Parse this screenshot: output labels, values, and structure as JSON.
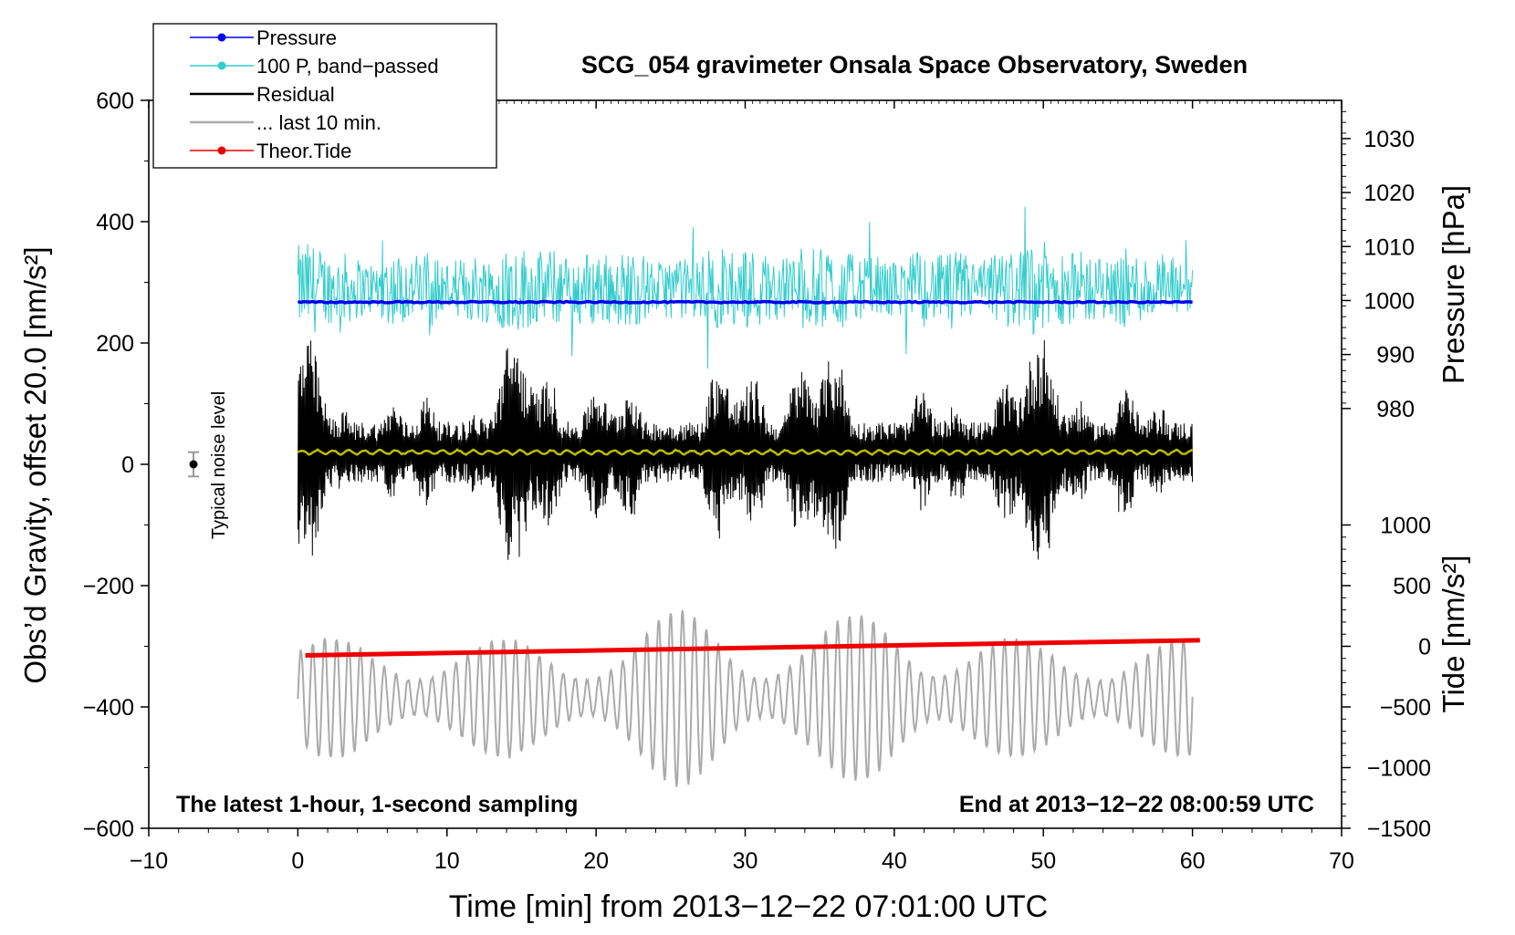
{
  "chart_data": {
    "type": "line",
    "title": "SCG_054 gravimeter Onsala Space Observatory, Sweden",
    "xlabel": "Time [min] from 2013−12−22 07:01:00 UTC",
    "ylabel_left": "Obs’d Gravity, offset 20.0 [nm/s²]",
    "ylabel_pressure": "Pressure [hPa]",
    "ylabel_tide": "Tide [nm/s²]",
    "note_left": "The latest 1-hour, 1-second sampling",
    "note_right": "End at 2013−12−22 08:00:59 UTC",
    "noise_label": "Typical noise level",
    "noise_marker": {
      "x": -7,
      "y": 0,
      "err": 20
    },
    "xlim": [
      -10,
      70
    ],
    "ylim_left": [
      -600,
      600
    ],
    "x_ticks": [
      -10,
      0,
      10,
      20,
      30,
      40,
      50,
      60,
      70
    ],
    "x_tick_labels": [
      "−10",
      "0",
      "10",
      "20",
      "30",
      "40",
      "50",
      "60",
      "70"
    ],
    "y_ticks_left": [
      600,
      400,
      200,
      0,
      -200,
      -400,
      -600
    ],
    "y_tick_labels_left": [
      "600",
      "400",
      "200",
      "0",
      "−200",
      "−400",
      "−600"
    ],
    "pressure_axis": {
      "ticks": [
        1030,
        1020,
        1010,
        1000,
        990,
        980
      ],
      "tick_labels": [
        "1030",
        "1020",
        "1010",
        "1000",
        "990",
        "980"
      ],
      "map_hpa": [
        1000,
        980
      ],
      "map_left": [
        270,
        92
      ]
    },
    "tide_axis": {
      "ticks": [
        1000,
        500,
        0,
        -500,
        -1000,
        -1500
      ],
      "tick_labels": [
        "1000",
        "500",
        "0",
        "−500",
        "−1000",
        "−1500"
      ],
      "map_tide": [
        1000,
        -1500
      ],
      "map_left": [
        -100,
        -600
      ]
    },
    "legend": [
      {
        "label": "Pressure",
        "color": "#0000ee",
        "marker": true
      },
      {
        "label": "100 P, band−passed",
        "color": "#33cccc",
        "marker": true
      },
      {
        "label": "Residual",
        "color": "#000000",
        "marker": false
      },
      {
        "label": "... last 10 min.",
        "color": "#aaaaaa",
        "marker": false
      },
      {
        "label": "Theor.Tide",
        "color": "#ee0000",
        "marker": true
      }
    ],
    "series": [
      {
        "name": "Pressure",
        "color": "#0000ee",
        "x_start": 0,
        "x_end": 60,
        "values_hpa": [
          999.7,
          999.7
        ]
      },
      {
        "name": "100 P, band−passed",
        "color": "#33cccc",
        "x_start": 0,
        "x_end": 60,
        "baseline": 290,
        "amplitude_approx": 70
      },
      {
        "name": "Residual",
        "color": "#000000",
        "x_start": 0,
        "x_end": 60,
        "baseline": 20,
        "amplitude_approx": 120
      },
      {
        "name": "Smoothed residual",
        "color": "#bbbb00",
        "x_start": 0,
        "x_end": 60,
        "baseline": 20
      },
      {
        "name": "... last 10 min.",
        "color": "#aaaaaa",
        "x_start": 0,
        "x_end": 60,
        "baseline": -385,
        "amplitude_approx": 100
      },
      {
        "name": "Theor.Tide",
        "color": "#ee0000",
        "x_start": 0.5,
        "x_end": 60.5,
        "values": [
          -315,
          -290
        ]
      }
    ]
  }
}
